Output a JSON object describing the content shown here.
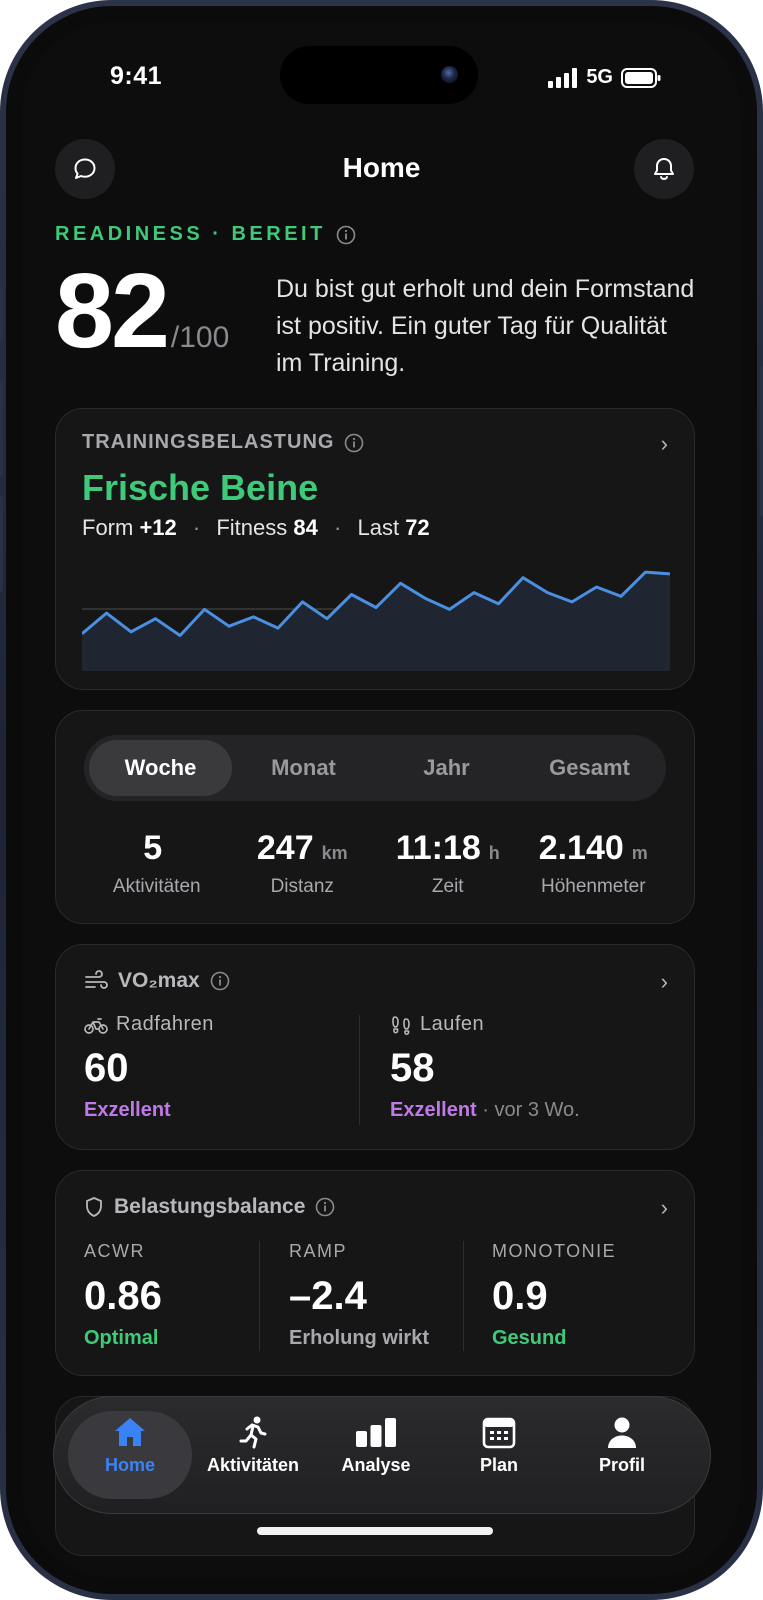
{
  "status": {
    "time": "9:41",
    "network": "5G"
  },
  "header": {
    "title": "Home"
  },
  "readiness": {
    "label": "READINESS · BEREIT",
    "score": "82",
    "max": "/100",
    "text": "Du bist gut erholt und dein Formstand ist positiv. Ein guter Tag für Qualität im Training."
  },
  "training_load": {
    "label": "TRAININGSBELASTUNG",
    "status": "Frische Beine",
    "form_label": "Form",
    "form_value": "+12",
    "fitness_label": "Fitness",
    "fitness_value": "84",
    "last_label": "Last",
    "last_value": "72",
    "separator": "·",
    "trend": [
      40,
      51,
      41,
      48,
      39,
      53,
      44,
      49,
      43,
      57,
      48,
      61,
      54,
      67,
      59,
      53,
      62,
      56,
      70,
      62,
      57,
      65,
      60,
      73,
      72
    ],
    "line_color": "#4a8fe0"
  },
  "period_tabs": [
    "Woche",
    "Monat",
    "Jahr",
    "Gesamt"
  ],
  "period_selected": "Woche",
  "summary": [
    {
      "value": "5",
      "unit": "",
      "label": "Aktivitäten"
    },
    {
      "value": "247",
      "unit": "km",
      "label": "Distanz"
    },
    {
      "value": "11:18",
      "unit": "h",
      "label": "Zeit"
    },
    {
      "value": "2.140",
      "unit": "m",
      "label": "Höhenmeter"
    }
  ],
  "vo2max": {
    "title": "VO₂max",
    "cycling": {
      "label": "Radfahren",
      "value": "60",
      "rating": "Exzellent"
    },
    "running": {
      "label": "Laufen",
      "value": "58",
      "rating": "Exzellent",
      "note": " · vor 3 Wo."
    }
  },
  "balance": {
    "title": "Belastungsbalance",
    "acwr": {
      "label": "ACWR",
      "value": "0.86",
      "status": "Optimal"
    },
    "ramp": {
      "label": "RAMP",
      "value": "–2.4",
      "status": "Erholung wirkt"
    },
    "monotony": {
      "label": "MONOTONIE",
      "value": "0.9",
      "status": "Gesund"
    }
  },
  "nav": {
    "home": "Home",
    "activities": "Aktivitäten",
    "analysis": "Analyse",
    "plan": "Plan",
    "profile": "Profil"
  },
  "colors": {
    "accent_green": "#3fca7a",
    "accent_blue": "#3b82f6",
    "accent_purple": "#c07ae8"
  },
  "icons": [
    "chat-icon",
    "bell-icon",
    "info-icon",
    "chevron-right-icon",
    "wind-icon",
    "bike-icon",
    "footprints-icon",
    "shield-icon",
    "home-icon",
    "runner-icon",
    "bar-chart-icon",
    "calendar-icon",
    "person-icon"
  ]
}
